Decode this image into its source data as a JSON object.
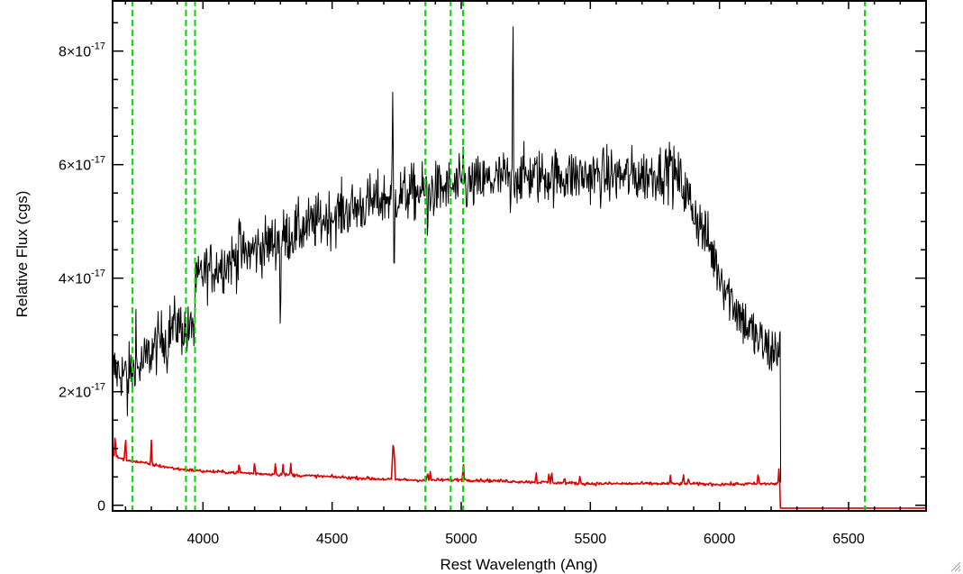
{
  "chart_data": {
    "type": "line",
    "xlabel": "Rest Wavelength (Ang)",
    "ylabel": "Relative Flux (cgs)",
    "xlim": [
      3650,
      6800
    ],
    "ylim": [
      -1e-18,
      8.9e-17
    ],
    "x_ticks": [
      {
        "value": 4000,
        "label": "4000"
      },
      {
        "value": 4500,
        "label": "4500"
      },
      {
        "value": 5000,
        "label": "5000"
      },
      {
        "value": 5500,
        "label": "5500"
      },
      {
        "value": 6000,
        "label": "6000"
      },
      {
        "value": 6500,
        "label": "6500"
      }
    ],
    "y_ticks": [
      {
        "value": 0,
        "mant": "0",
        "exp": ""
      },
      {
        "value": 2e-17,
        "mant": "2×10",
        "exp": "-17"
      },
      {
        "value": 4e-17,
        "mant": "4×10",
        "exp": "-17"
      },
      {
        "value": 6e-17,
        "mant": "6×10",
        "exp": "-17"
      },
      {
        "value": 8e-17,
        "mant": "8×10",
        "exp": "-17"
      }
    ],
    "vlines": [
      3727,
      3934,
      3969,
      4861,
      4959,
      5007,
      6563
    ],
    "vline_color": "#00dd00",
    "series": [
      {
        "color": "#000000",
        "x_range": [
          3650,
          6237
        ],
        "continuum_y": [
          [
            3650,
            2.4e-17
          ],
          [
            3700,
            2.3e-17
          ],
          [
            3750,
            2.4e-17
          ],
          [
            3800,
            2.7e-17
          ],
          [
            3850,
            3e-17
          ],
          [
            3900,
            3.2e-17
          ],
          [
            3950,
            3e-17
          ],
          [
            3975,
            3.9e-17
          ],
          [
            4000,
            4.1e-17
          ],
          [
            4100,
            4.3e-17
          ],
          [
            4200,
            4.5e-17
          ],
          [
            4300,
            4.7e-17
          ],
          [
            4400,
            4.9e-17
          ],
          [
            4500,
            5.1e-17
          ],
          [
            4600,
            5.25e-17
          ],
          [
            4700,
            5.4e-17
          ],
          [
            4800,
            5.5e-17
          ],
          [
            4900,
            5.55e-17
          ],
          [
            5000,
            5.6e-17
          ],
          [
            5100,
            5.7e-17
          ],
          [
            5200,
            5.8e-17
          ],
          [
            5300,
            5.8e-17
          ],
          [
            5400,
            5.8e-17
          ],
          [
            5500,
            5.8e-17
          ],
          [
            5600,
            5.8e-17
          ],
          [
            5700,
            5.8e-17
          ],
          [
            5800,
            5.9e-17
          ],
          [
            5850,
            5.7e-17
          ],
          [
            5900,
            5.2e-17
          ],
          [
            5950,
            4.7e-17
          ],
          [
            6000,
            4.1e-17
          ],
          [
            6050,
            3.6e-17
          ],
          [
            6100,
            3.2e-17
          ],
          [
            6150,
            2.9e-17
          ],
          [
            6200,
            2.7e-17
          ],
          [
            6233,
            2.8e-17
          ]
        ],
        "noise_sigma": 3.5e-18,
        "features": [
          [
            3707,
            -6e-18
          ],
          [
            3740,
            9e-18
          ],
          [
            3860,
            -9e-18
          ],
          [
            3965,
            -9e-18
          ],
          [
            4140,
            1e-17
          ],
          [
            4300,
            -1.8e-17
          ],
          [
            4735,
            2e-17
          ],
          [
            4740,
            -1.9e-17
          ],
          [
            4870,
            -9e-18
          ],
          [
            5008,
            1e-17
          ],
          [
            5200,
            3.2e-17
          ],
          [
            5190,
            -8e-18
          ],
          [
            5810,
            7e-18
          ]
        ]
      },
      {
        "color": "#dd0000",
        "x_range": [
          3650,
          6800
        ],
        "continuum_y": [
          [
            3650,
            8.8e-18
          ],
          [
            3700,
            8e-18
          ],
          [
            3800,
            7.2e-18
          ],
          [
            3900,
            6.4e-18
          ],
          [
            4000,
            6e-18
          ],
          [
            4200,
            5.6e-18
          ],
          [
            4500,
            5e-18
          ],
          [
            4700,
            4.6e-18
          ],
          [
            4850,
            4.4e-18
          ],
          [
            5000,
            4.5e-18
          ],
          [
            5200,
            4.2e-18
          ],
          [
            5500,
            3.8e-18
          ],
          [
            5800,
            3.8e-18
          ],
          [
            6000,
            3.7e-18
          ],
          [
            6234,
            3.8e-18
          ],
          [
            6236,
            -5e-19
          ],
          [
            6800,
            -5e-19
          ]
        ],
        "noise_sigma": 2e-19,
        "features": [
          [
            3660,
            4.5e-18
          ],
          [
            3700,
            4.5e-18
          ],
          [
            3800,
            4e-18
          ],
          [
            4140,
            2e-18
          ],
          [
            4200,
            2.2e-18
          ],
          [
            4280,
            2e-18
          ],
          [
            4310,
            1.8e-18
          ],
          [
            4340,
            2e-18
          ],
          [
            4735,
            8e-18
          ],
          [
            4740,
            7.5e-18
          ],
          [
            4870,
            1.5e-18
          ],
          [
            4880,
            1.5e-18
          ],
          [
            5008,
            3.8e-18
          ],
          [
            5290,
            2e-18
          ],
          [
            5340,
            2e-18
          ],
          [
            5350,
            2e-18
          ],
          [
            5400,
            1.2e-18
          ],
          [
            5460,
            1.5e-18
          ],
          [
            5810,
            1.2e-18
          ],
          [
            5860,
            1.8e-18
          ],
          [
            5880,
            1.5e-18
          ],
          [
            6150,
            2.2e-18
          ],
          [
            6230,
            2.5e-18
          ]
        ]
      }
    ]
  }
}
